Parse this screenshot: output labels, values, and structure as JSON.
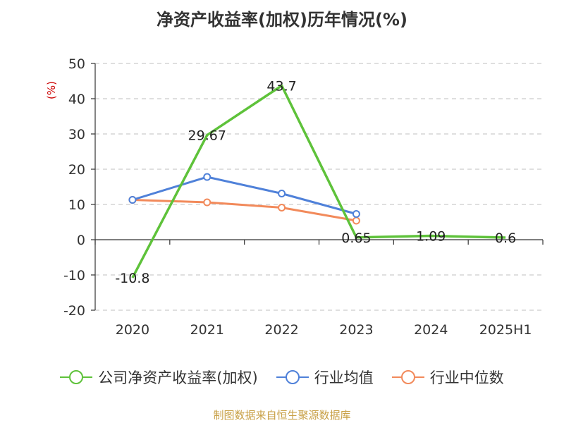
{
  "chart_data": {
    "type": "line",
    "title": "净资产收益率(加权)历年情况(%)",
    "ylabel": "(%)",
    "categories": [
      "2020",
      "2021",
      "2022",
      "2023",
      "2024",
      "2025H1"
    ],
    "ylim": [
      -20,
      50
    ],
    "yticks": [
      "50",
      "40",
      "30",
      "20",
      "10",
      "0",
      "-10",
      "-20"
    ],
    "grid": true,
    "legend_position": "bottom",
    "series": [
      {
        "name": "公司净资产收益率(加权)",
        "color": "#5ec23a",
        "values": [
          -10.8,
          29.67,
          43.7,
          0.65,
          1.09,
          0.6
        ],
        "labels": [
          "-10.8",
          "29.67",
          "43.7",
          "0.65",
          "1.09",
          "0.6"
        ]
      },
      {
        "name": "行业均值",
        "color": "#4f81d9",
        "values": [
          11.3,
          17.8,
          13.1,
          7.3,
          null,
          null
        ]
      },
      {
        "name": "行业中位数",
        "color": "#f28a5b",
        "values": [
          11.3,
          10.6,
          9.1,
          5.4,
          null,
          null
        ]
      }
    ]
  },
  "footer": {
    "source": "制图数据来自恒生聚源数据库"
  }
}
